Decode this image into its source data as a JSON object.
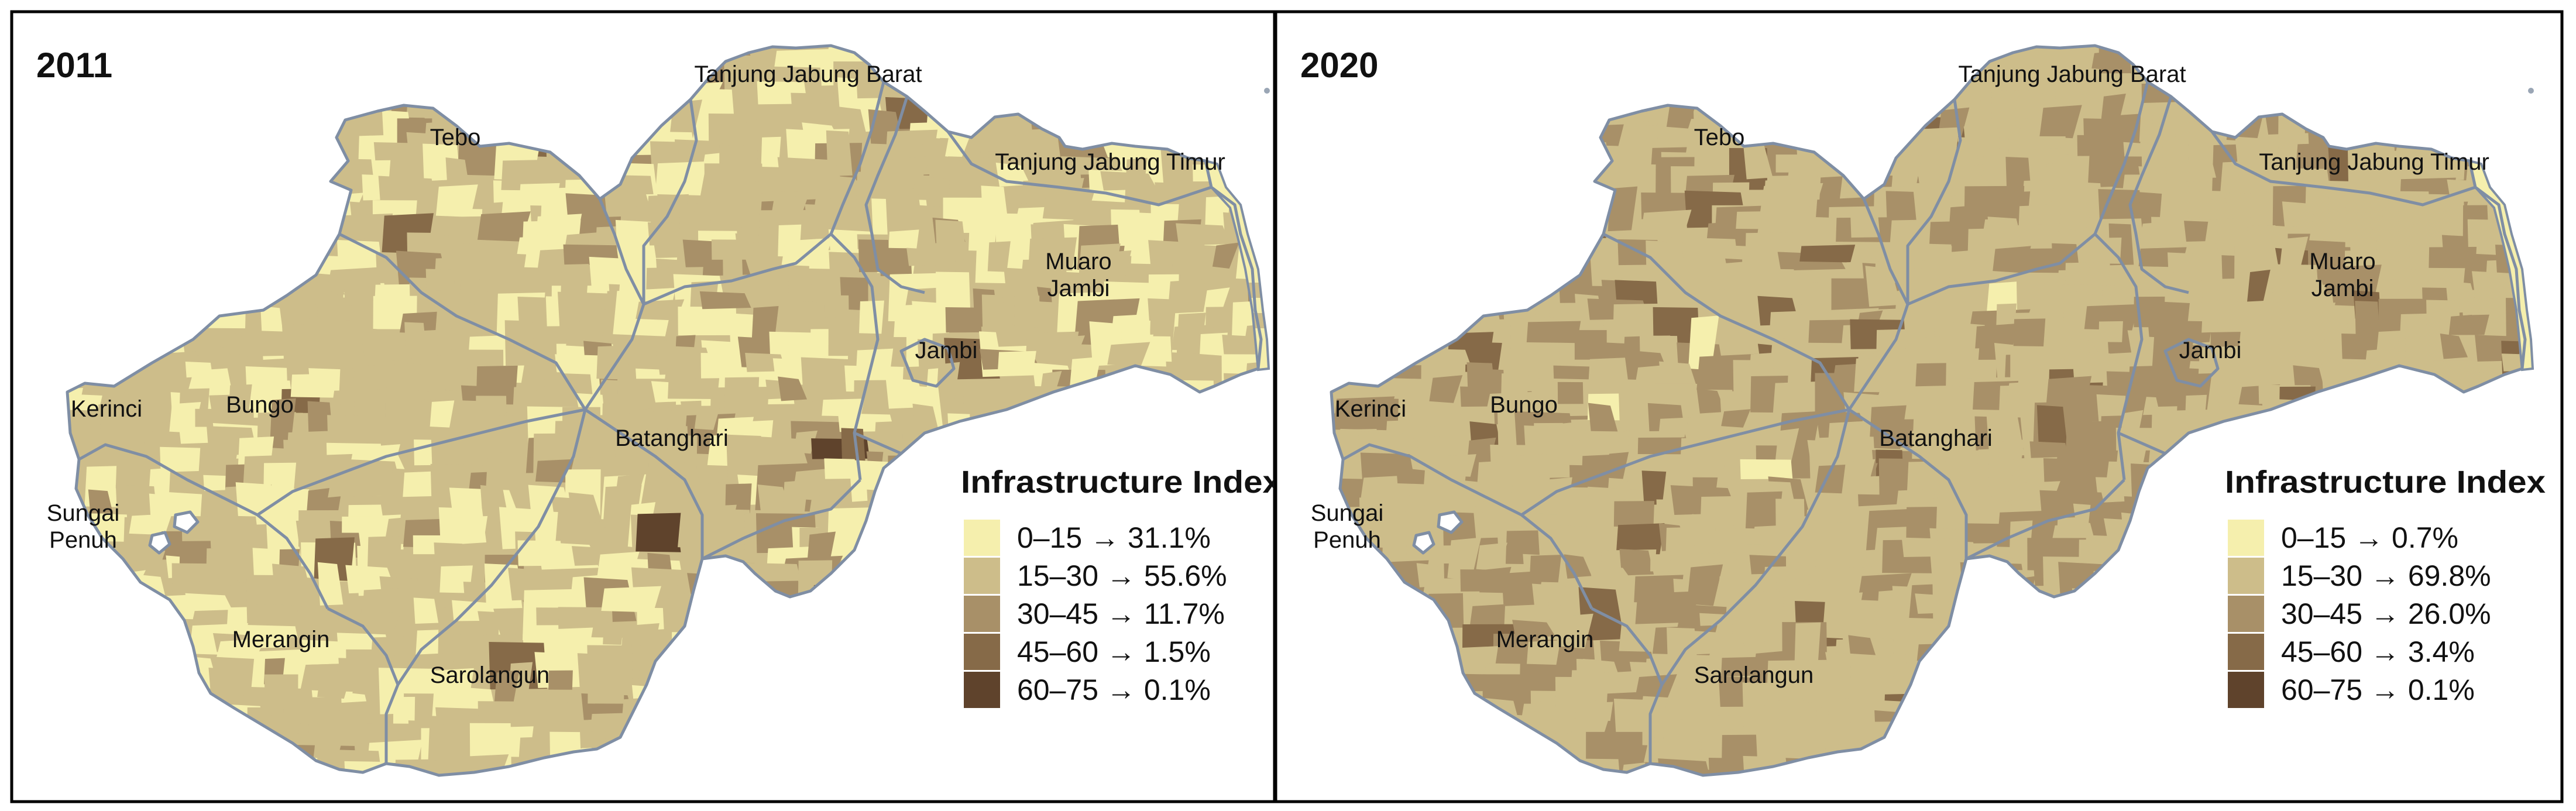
{
  "figure": {
    "panels": [
      {
        "year": "2011",
        "regions": [
          "Tebo",
          "Tanjung Jabung Barat",
          "Tanjung Jabung Timur",
          "Muaro Jambi",
          "Jambi",
          "Kerinci",
          "Bungo",
          "Batanghari",
          "Sungai Penuh",
          "Merangin",
          "Sarolangun"
        ],
        "legend": {
          "title": "Infrastructure Index",
          "items": [
            {
              "label": "0–15 → 31.1%",
              "color": "#f5efad"
            },
            {
              "label": "15–30 → 55.6%",
              "color": "#cdbd8a"
            },
            {
              "label": "30–45 → 11.7%",
              "color": "#a89068"
            },
            {
              "label": "45–60 → 1.5%",
              "color": "#866a48"
            },
            {
              "label": "60–75 → 0.1%",
              "color": "#5f432c"
            }
          ]
        },
        "patch_weights": [
          31.1,
          55.6,
          11.7,
          1.5,
          0.1
        ]
      },
      {
        "year": "2020",
        "regions": [
          "Tebo",
          "Tanjung Jabung Barat",
          "Tanjung Jabung Timur",
          "Muaro Jambi",
          "Jambi",
          "Kerinci",
          "Bungo",
          "Batanghari",
          "Sungai Penuh",
          "Merangin",
          "Sarolangun"
        ],
        "legend": {
          "title": "Infrastructure Index",
          "items": [
            {
              "label": "0–15 → 0.7%",
              "color": "#f5efad"
            },
            {
              "label": "15–30 → 69.8%",
              "color": "#cdbd8a"
            },
            {
              "label": "30–45 → 26.0%",
              "color": "#a89068"
            },
            {
              "label": "45–60 → 3.4%",
              "color": "#866a48"
            },
            {
              "label": "60–75 → 0.1%",
              "color": "#5f432c"
            }
          ]
        },
        "patch_weights": [
          0.7,
          69.8,
          26.0,
          3.4,
          0.1
        ]
      }
    ],
    "colors": {
      "boundary": "#7f8ea4",
      "frame": "#000000",
      "text": "#111111",
      "background": "#ffffff"
    }
  }
}
